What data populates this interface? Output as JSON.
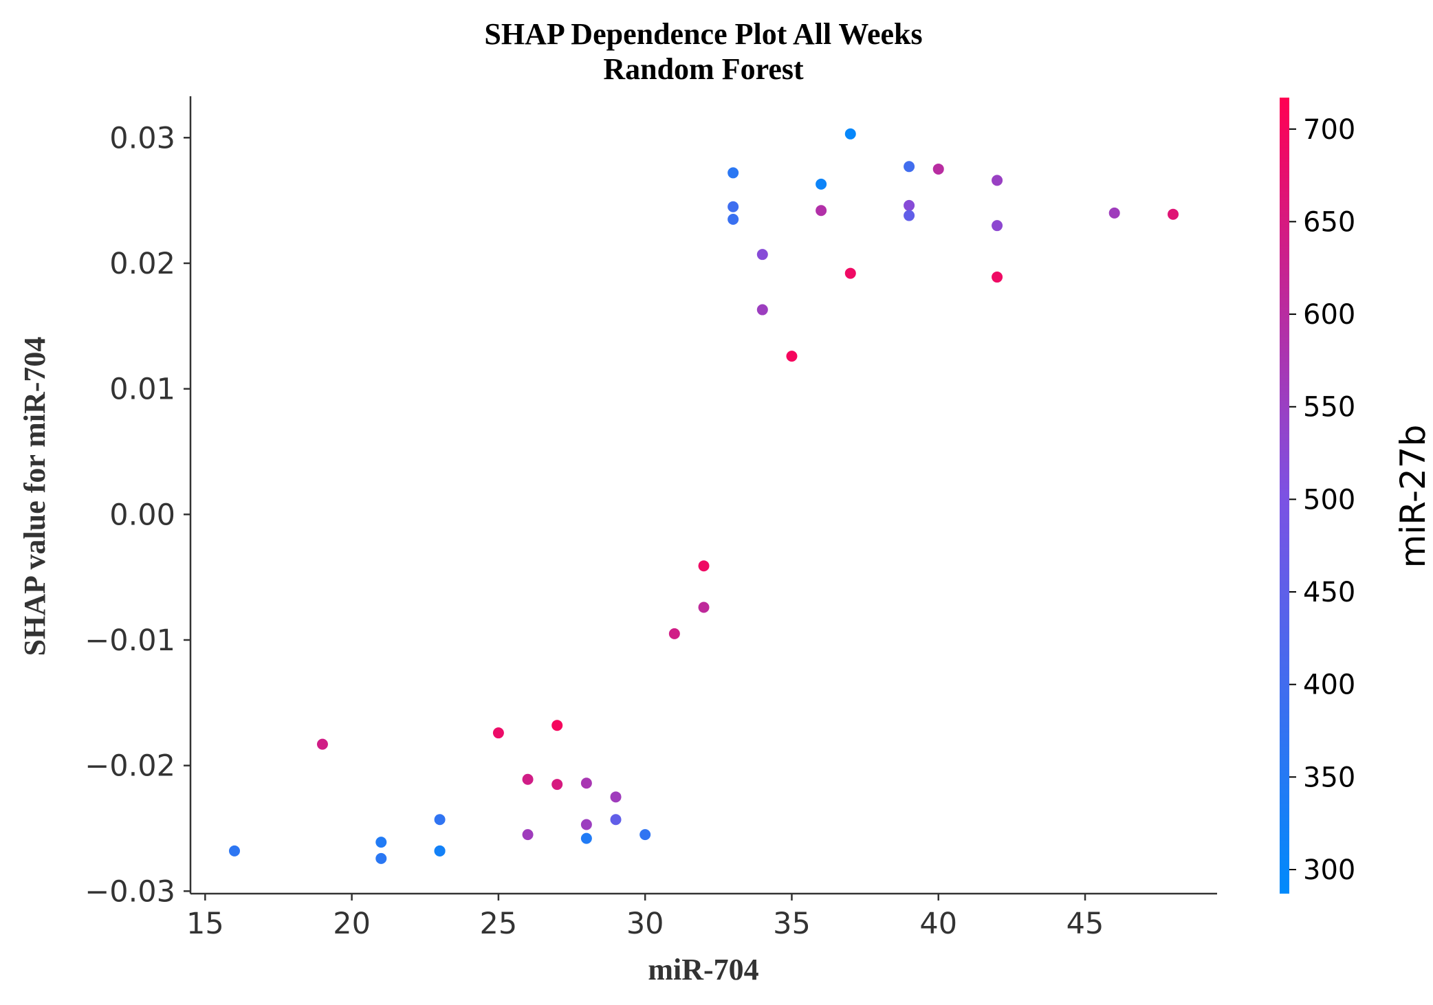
{
  "chart_data": {
    "type": "scatter",
    "title_line1": "SHAP Dependence Plot All Weeks",
    "title_line2": "Random Forest",
    "xlabel": "miR-704",
    "ylabel": "SHAP value for miR-704",
    "xlim": [
      14.5,
      49.5
    ],
    "ylim": [
      -0.0302,
      0.0333
    ],
    "xticks": [
      15,
      20,
      25,
      30,
      35,
      40,
      45
    ],
    "xtick_labels": [
      "15",
      "20",
      "25",
      "30",
      "35",
      "40",
      "45"
    ],
    "yticks": [
      -0.03,
      -0.02,
      -0.01,
      0.0,
      0.01,
      0.02,
      0.03
    ],
    "ytick_labels": [
      "−0.03",
      "−0.02",
      "−0.01",
      "0.00",
      "0.01",
      "0.02",
      "0.03"
    ],
    "grid": false,
    "colorbar": {
      "label": "miR-27b",
      "range": [
        287,
        717
      ],
      "ticks": [
        300,
        350,
        400,
        450,
        500,
        550,
        600,
        650,
        700
      ],
      "tick_labels": [
        "300",
        "350",
        "400",
        "450",
        "500",
        "550",
        "600",
        "650",
        "700"
      ],
      "color_low": "#008afb",
      "color_mid": "#7c52e3",
      "color_high": "#ff0052"
    },
    "points": [
      {
        "x": 16,
        "y": -0.0268,
        "c": 365
      },
      {
        "x": 19,
        "y": -0.0183,
        "c": 640
      },
      {
        "x": 21,
        "y": -0.0261,
        "c": 345
      },
      {
        "x": 21,
        "y": -0.0274,
        "c": 360
      },
      {
        "x": 23,
        "y": -0.0243,
        "c": 370
      },
      {
        "x": 23,
        "y": -0.0268,
        "c": 310
      },
      {
        "x": 23,
        "y": -0.0268,
        "c": 320
      },
      {
        "x": 25,
        "y": -0.0174,
        "c": 685
      },
      {
        "x": 26,
        "y": -0.0211,
        "c": 640
      },
      {
        "x": 26,
        "y": -0.0255,
        "c": 560
      },
      {
        "x": 27,
        "y": -0.0168,
        "c": 700
      },
      {
        "x": 27,
        "y": -0.0215,
        "c": 650
      },
      {
        "x": 28,
        "y": -0.0214,
        "c": 575
      },
      {
        "x": 28,
        "y": -0.0247,
        "c": 555
      },
      {
        "x": 28,
        "y": -0.0258,
        "c": 345
      },
      {
        "x": 29,
        "y": -0.0225,
        "c": 560
      },
      {
        "x": 29,
        "y": -0.0243,
        "c": 455
      },
      {
        "x": 30,
        "y": -0.0255,
        "c": 370
      },
      {
        "x": 31,
        "y": -0.0095,
        "c": 640
      },
      {
        "x": 32,
        "y": -0.0041,
        "c": 690
      },
      {
        "x": 32,
        "y": -0.0074,
        "c": 610
      },
      {
        "x": 33,
        "y": 0.0272,
        "c": 360
      },
      {
        "x": 33,
        "y": 0.0245,
        "c": 395
      },
      {
        "x": 33,
        "y": 0.0235,
        "c": 385
      },
      {
        "x": 34,
        "y": 0.0207,
        "c": 520
      },
      {
        "x": 34,
        "y": 0.0163,
        "c": 555
      },
      {
        "x": 35,
        "y": 0.0126,
        "c": 700
      },
      {
        "x": 36,
        "y": 0.0263,
        "c": 310
      },
      {
        "x": 36,
        "y": 0.0242,
        "c": 590
      },
      {
        "x": 37,
        "y": 0.0303,
        "c": 300
      },
      {
        "x": 37,
        "y": 0.0192,
        "c": 690
      },
      {
        "x": 39,
        "y": 0.0277,
        "c": 400
      },
      {
        "x": 39,
        "y": 0.0246,
        "c": 520
      },
      {
        "x": 39,
        "y": 0.0238,
        "c": 455
      },
      {
        "x": 40,
        "y": 0.0275,
        "c": 600
      },
      {
        "x": 42,
        "y": 0.0266,
        "c": 550
      },
      {
        "x": 42,
        "y": 0.023,
        "c": 530
      },
      {
        "x": 42,
        "y": 0.0189,
        "c": 690
      },
      {
        "x": 46,
        "y": 0.024,
        "c": 560
      },
      {
        "x": 48,
        "y": 0.0239,
        "c": 665
      }
    ]
  }
}
